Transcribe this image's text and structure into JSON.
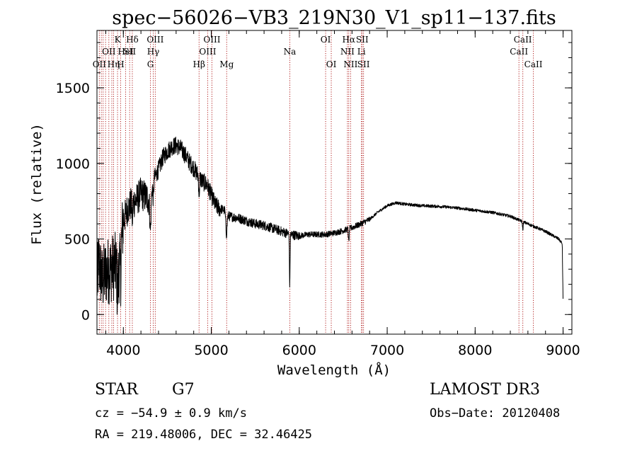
{
  "chart_data": {
    "type": "line",
    "title": "spec−56026−VB3_219N30_V1_sp11−137.fits",
    "xlabel": "Wavelength (Å)",
    "ylabel": "Flux (relative)",
    "xlim": [
      3700,
      9100
    ],
    "ylim": [
      -130,
      1880
    ],
    "xticks": [
      {
        "value": 4000,
        "label": "4000"
      },
      {
        "value": 5000,
        "label": "5000"
      },
      {
        "value": 6000,
        "label": "6000"
      },
      {
        "value": 7000,
        "label": "7000"
      },
      {
        "value": 8000,
        "label": "8000"
      },
      {
        "value": 9000,
        "label": "9000"
      }
    ],
    "yticks": [
      {
        "value": 0,
        "label": "0"
      },
      {
        "value": 500,
        "label": "500"
      },
      {
        "value": 1000,
        "label": "1000"
      },
      {
        "value": 1500,
        "label": "1500"
      }
    ],
    "x_minor_step": 200,
    "y_minor_step": 100,
    "grid": false,
    "spectrum_anchors": [
      [
        3700,
        200
      ],
      [
        3720,
        350
      ],
      [
        3760,
        220
      ],
      [
        3800,
        280
      ],
      [
        3850,
        300
      ],
      [
        3900,
        320
      ],
      [
        3950,
        300
      ],
      [
        3980,
        500
      ],
      [
        4000,
        620
      ],
      [
        4050,
        700
      ],
      [
        4100,
        740
      ],
      [
        4150,
        760
      ],
      [
        4200,
        800
      ],
      [
        4250,
        780
      ],
      [
        4300,
        760
      ],
      [
        4350,
        900
      ],
      [
        4400,
        960
      ],
      [
        4450,
        1040
      ],
      [
        4500,
        1080
      ],
      [
        4550,
        1110
      ],
      [
        4600,
        1120
      ],
      [
        4650,
        1100
      ],
      [
        4700,
        1060
      ],
      [
        4750,
        1010
      ],
      [
        4800,
        970
      ],
      [
        4850,
        920
      ],
      [
        4900,
        880
      ],
      [
        4950,
        860
      ],
      [
        5000,
        790
      ],
      [
        5050,
        720
      ],
      [
        5100,
        700
      ],
      [
        5150,
        690
      ],
      [
        5200,
        650
      ],
      [
        5300,
        640
      ],
      [
        5400,
        620
      ],
      [
        5500,
        600
      ],
      [
        5600,
        590
      ],
      [
        5700,
        570
      ],
      [
        5800,
        550
      ],
      [
        5900,
        530
      ],
      [
        6000,
        520
      ],
      [
        6100,
        530
      ],
      [
        6200,
        530
      ],
      [
        6300,
        530
      ],
      [
        6400,
        540
      ],
      [
        6500,
        555
      ],
      [
        6600,
        575
      ],
      [
        6700,
        600
      ],
      [
        6800,
        630
      ],
      [
        6900,
        680
      ],
      [
        7000,
        720
      ],
      [
        7100,
        740
      ],
      [
        7200,
        730
      ],
      [
        7400,
        720
      ],
      [
        7600,
        715
      ],
      [
        7800,
        705
      ],
      [
        8000,
        690
      ],
      [
        8200,
        675
      ],
      [
        8400,
        650
      ],
      [
        8600,
        600
      ],
      [
        8800,
        550
      ],
      [
        8950,
        500
      ],
      [
        8990,
        470
      ],
      [
        9000,
        90
      ]
    ],
    "spectrum_absorption": [
      {
        "center": 3934,
        "depth": 180,
        "width": 8
      },
      {
        "center": 3969,
        "depth": 160,
        "width": 8
      },
      {
        "center": 4102,
        "depth": 120,
        "width": 6
      },
      {
        "center": 4308,
        "depth": 220,
        "width": 10
      },
      {
        "center": 4341,
        "depth": 120,
        "width": 6
      },
      {
        "center": 4861,
        "depth": 120,
        "width": 6
      },
      {
        "center": 5172,
        "depth": 140,
        "width": 10
      },
      {
        "center": 5892,
        "depth": 340,
        "width": 5
      },
      {
        "center": 6563,
        "depth": 90,
        "width": 6
      },
      {
        "center": 8542,
        "depth": 50,
        "width": 6
      }
    ],
    "spectral_lines": [
      {
        "wavelength": 3727,
        "label": "OII",
        "row": 2
      },
      {
        "wavelength": 3750,
        "label": "",
        "row": 0
      },
      {
        "wavelength": 3770,
        "label": "",
        "row": 0
      },
      {
        "wavelength": 3798,
        "label": "",
        "row": 0
      },
      {
        "wavelength": 3835,
        "label": "OII",
        "row": 1
      },
      {
        "wavelength": 3869,
        "label": "",
        "row": 0
      },
      {
        "wavelength": 3889,
        "label": "Hη",
        "row": 2
      },
      {
        "wavelength": 3934,
        "label": "K",
        "row": 0
      },
      {
        "wavelength": 3969,
        "label": "H",
        "row": 2
      },
      {
        "wavelength": 4026,
        "label": "HeI",
        "row": 1
      },
      {
        "wavelength": 4072,
        "label": "SII",
        "row": 1
      },
      {
        "wavelength": 4102,
        "label": "Hδ",
        "row": 0
      },
      {
        "wavelength": 4308,
        "label": "G",
        "row": 2
      },
      {
        "wavelength": 4340,
        "label": "Hγ",
        "row": 1
      },
      {
        "wavelength": 4363,
        "label": "OIII",
        "row": 0
      },
      {
        "wavelength": 4861,
        "label": "Hβ",
        "row": 2
      },
      {
        "wavelength": 4959,
        "label": "OIII",
        "row": 1
      },
      {
        "wavelength": 5007,
        "label": "OIII",
        "row": 0
      },
      {
        "wavelength": 5175,
        "label": "Mg",
        "row": 2
      },
      {
        "wavelength": 5893,
        "label": "Na",
        "row": 1
      },
      {
        "wavelength": 6300,
        "label": "OI",
        "row": 0
      },
      {
        "wavelength": 6364,
        "label": "OI",
        "row": 2
      },
      {
        "wavelength": 6548,
        "label": "NII",
        "row": 1
      },
      {
        "wavelength": 6563,
        "label": "Hα",
        "row": 0
      },
      {
        "wavelength": 6584,
        "label": "NII",
        "row": 2
      },
      {
        "wavelength": 6707,
        "label": "Li",
        "row": 1
      },
      {
        "wavelength": 6716,
        "label": "SII",
        "row": 0
      },
      {
        "wavelength": 6731,
        "label": "SII",
        "row": 2
      },
      {
        "wavelength": 8498,
        "label": "CaII",
        "row": 1
      },
      {
        "wavelength": 8542,
        "label": "CaII",
        "row": 0
      },
      {
        "wavelength": 8662,
        "label": "CaII",
        "row": 2
      }
    ],
    "colors": {
      "spectrum": "#000000",
      "lines": "#b22222",
      "axes": "#000000"
    }
  },
  "info": {
    "class": "STAR",
    "subclass": "G7",
    "survey": "LAMOST DR3",
    "redshift": "cz = −54.9 ± 0.9 km/s",
    "obs_date": "Obs−Date: 20120408",
    "coords": "RA = 219.48006, DEC =  32.46425"
  }
}
